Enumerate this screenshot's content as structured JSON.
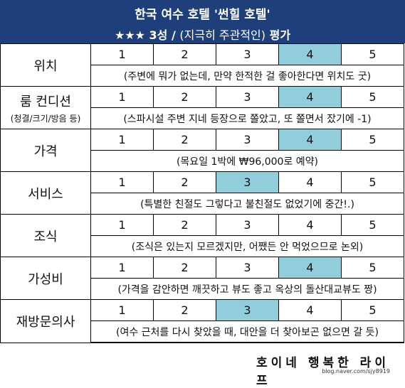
{
  "header": {
    "title": "한국 여수 호텔 '썬힐 호텔'",
    "stars": "★★★",
    "grade": "3성 /",
    "paren": "(지극히 주관적인)",
    "eval": "평가"
  },
  "scale": [
    "1",
    "2",
    "3",
    "4",
    "5"
  ],
  "rows": [
    {
      "label": "위치",
      "sub": "",
      "selected": 4,
      "note": "(주변에 뭐가 없는데, 만약 한적한 걸 좋아한다면 위치도 굿)"
    },
    {
      "label": "룸 컨디션",
      "sub": "(청결/크기/방음 등)",
      "selected": 4,
      "note": "(스파시설 주변 지네 등장으로 쫄았고, 또 쫄면서 잤기에 -1)"
    },
    {
      "label": "가격",
      "sub": "",
      "selected": 4,
      "note": "(목요일 1박에 ₩96,000로 예약)"
    },
    {
      "label": "서비스",
      "sub": "",
      "selected": 3,
      "note": "(특별한 친절도 그렇다고 불친절도 없었기에 중간!.)"
    },
    {
      "label": "조식",
      "sub": "",
      "selected": 0,
      "note": "(조식은 있는지 모르겠지만, 어쨌든 안 먹었으므로 논외)"
    },
    {
      "label": "가성비",
      "sub": "",
      "selected": 4,
      "note": "(가격을 감안하면 깨끗하고 뷰도 좋고 옥상의 돌산대교뷰도 짱)"
    },
    {
      "label": "재방문의사",
      "sub": "",
      "selected": 3,
      "note": "(여수 근처를 다시 찾았을 때, 대안을 더 찾아보곤 없으면 갈 듯)"
    }
  ],
  "watermark": {
    "title": "호이네 행복한 라이프",
    "url": "blog.naver.com/sjy8919"
  },
  "colors": {
    "header_bg": "#1f3f7a",
    "selected_bg": "#92cddc"
  }
}
